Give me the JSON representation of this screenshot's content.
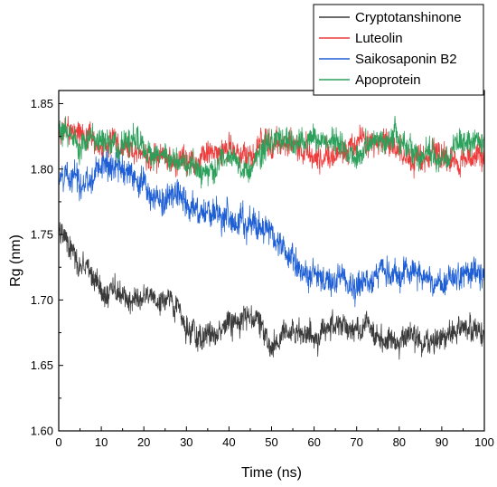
{
  "chart_data": {
    "type": "line",
    "title": "",
    "xlabel": "Time (ns)",
    "ylabel": "Rg (nm)",
    "xlim": [
      0,
      100
    ],
    "ylim": [
      1.6,
      1.86
    ],
    "x_ticks": [
      0,
      10,
      20,
      30,
      40,
      50,
      60,
      70,
      80,
      90,
      100
    ],
    "x_tick_labels": [
      "0",
      "10",
      "20",
      "30",
      "40",
      "50",
      "60",
      "70",
      "80",
      "90",
      "100"
    ],
    "y_ticks": [
      1.6,
      1.65,
      1.7,
      1.75,
      1.8,
      1.85
    ],
    "y_tick_labels": [
      "1.60",
      "1.65",
      "1.70",
      "1.75",
      "1.80",
      "1.85"
    ],
    "grid": false,
    "legend_position": "top-right",
    "x": [
      0,
      5,
      10,
      15,
      20,
      25,
      30,
      35,
      40,
      45,
      50,
      55,
      60,
      65,
      70,
      75,
      80,
      85,
      90,
      95,
      100
    ],
    "series": [
      {
        "name": "Cryptotanshinone",
        "color": "#3a3a3a",
        "noise": 0.009,
        "values": [
          1.76,
          1.72,
          1.71,
          1.7,
          1.7,
          1.7,
          1.68,
          1.67,
          1.68,
          1.69,
          1.66,
          1.68,
          1.67,
          1.68,
          1.68,
          1.67,
          1.67,
          1.67,
          1.67,
          1.68,
          1.67
        ]
      },
      {
        "name": "Luteolin",
        "color": "#ee3b3b",
        "noise": 0.009,
        "values": [
          1.83,
          1.83,
          1.82,
          1.82,
          1.81,
          1.81,
          1.8,
          1.81,
          1.81,
          1.81,
          1.82,
          1.82,
          1.81,
          1.81,
          1.82,
          1.82,
          1.81,
          1.81,
          1.81,
          1.81,
          1.81
        ]
      },
      {
        "name": "Saikosaponin B2",
        "color": "#1f5fd6",
        "noise": 0.01,
        "values": [
          1.79,
          1.79,
          1.8,
          1.8,
          1.79,
          1.78,
          1.78,
          1.77,
          1.76,
          1.76,
          1.75,
          1.73,
          1.72,
          1.71,
          1.71,
          1.72,
          1.72,
          1.72,
          1.71,
          1.72,
          1.72
        ]
      },
      {
        "name": "Apoprotein",
        "color": "#2aa05a",
        "noise": 0.009,
        "values": [
          1.83,
          1.82,
          1.82,
          1.82,
          1.82,
          1.81,
          1.8,
          1.8,
          1.81,
          1.8,
          1.82,
          1.82,
          1.82,
          1.82,
          1.81,
          1.82,
          1.82,
          1.81,
          1.81,
          1.82,
          1.82
        ]
      }
    ]
  }
}
